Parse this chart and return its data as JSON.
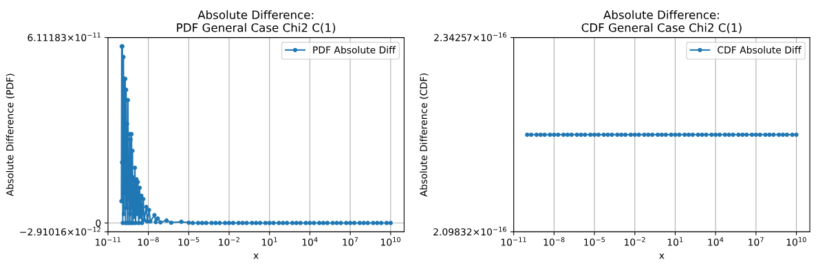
{
  "chart_data": [
    {
      "type": "line",
      "title": "Absolute Difference:\nPDF General Case Chi2 C(1)",
      "xlabel": "x",
      "ylabel": "Absolute Difference (PDF)",
      "log": "x",
      "grid": true,
      "legend": "top right",
      "marker": "circle",
      "line_style": "solid",
      "xlim": [
        1e-11,
        100000000000.0
      ],
      "xticks": [
        {
          "value": 1e-11,
          "label": "10$^{−11}$"
        },
        {
          "value": 1e-08,
          "label": "10$^{−8}$"
        },
        {
          "value": 1e-05,
          "label": "10$^{−5}$"
        },
        {
          "value": 0.01,
          "label": "10$^{−2}$"
        },
        {
          "value": 10,
          "label": "10$^{1}$"
        },
        {
          "value": 10000,
          "label": "10$^{4}$"
        },
        {
          "value": 10000000,
          "label": "10$^{7}$"
        },
        {
          "value": 10000000000,
          "label": "10$^{10}$"
        }
      ],
      "ylim": [
        -2.91016e-12,
        6.11183e-11
      ],
      "yticks": [
        {
          "value": -2.91016e-12,
          "label": "−2.91016×10$^{−12}$"
        },
        0,
        {
          "value": 6.11183e-11,
          "label": "6.11183×10$^{−11}$"
        }
      ],
      "series": [
        {
          "name": "PDF Absolute Diff",
          "color": "#1f77b4",
          "x": [
            1e-10,
            1.05e-10,
            1.12e-10,
            1.17e-10,
            1.26e-10,
            1.41e-10,
            1.51e-10,
            1.66e-10,
            1.78e-10,
            1.91e-10,
            2e-10,
            2.24e-10,
            2.4e-10,
            2.63e-10,
            2.82e-10,
            3.02e-10,
            3.31e-10,
            3.55e-10,
            3.8e-10,
            4.17e-10,
            4.47e-10,
            4.79e-10,
            5.25e-10,
            5.62e-10,
            6.03e-10,
            6.61e-10,
            7.08e-10,
            7.94e-10,
            8.91e-10,
            1e-09,
            1.12e-09,
            1.32e-09,
            1.51e-09,
            1.66e-09,
            1.91e-09,
            2.24e-09,
            2.51e-09,
            3.02e-09,
            3.31e-09,
            4.17e-09,
            4.79e-09,
            7.08e-09,
            8.32e-09,
            1.12e-08,
            1.41e-08,
            2.82e-08,
            3.55e-08,
            5.01e-08,
            7.94e-08,
            2.24e-07,
            5.01e-07,
            2.82e-06,
            1e-05,
            2e-05,
            5e-05,
            0.0001,
            0.0002,
            0.0005,
            0.001,
            0.002,
            0.005,
            0.01,
            0.02,
            0.05,
            0.1,
            0.2,
            0.5,
            1,
            2,
            5,
            10,
            20,
            50,
            100,
            200,
            500,
            1000,
            2000,
            5000,
            10000.0,
            20000.0,
            50000.0,
            100000.0,
            200000.0,
            500000.0,
            1000000.0,
            2000000.0,
            5000000.0,
            10000000.0,
            20000000.0,
            50000000.0,
            100000000.0,
            200000000.0,
            500000000.0,
            1000000000.0,
            2000000000.0,
            5000000000.0,
            10000000000.0
          ],
          "values": [
            7.2e-12,
            5.82e-11,
            2e-11,
            5.82e-11,
            0,
            5.47e-11,
            3e-12,
            4.75e-11,
            1e-11,
            4.75e-11,
            0,
            4.39e-11,
            5e-12,
            3.27e-11,
            0,
            4.05e-11,
            8e-12,
            2e-11,
            0,
            2.93e-11,
            3e-12,
            2.75e-11,
            0,
            2.93e-11,
            5e-12,
            2.38e-11,
            0,
            1.5e-11,
            2e-12,
            1.82e-11,
            0,
            1.44e-11,
            3e-12,
            1.35e-11,
            0,
            1.16e-11,
            2e-12,
            9e-12,
            0,
            7.9e-12,
            1e-12,
            5.3e-12,
            5e-13,
            4.3e-12,
            5e-13,
            2.6e-12,
            3e-13,
            1.5e-12,
            2e-13,
            8e-13,
            1e-13,
            4e-13,
            1e-13,
            0,
            0,
            0,
            0,
            0,
            0,
            0,
            0,
            0,
            0,
            0,
            0,
            0,
            0,
            0,
            0,
            0,
            0,
            0,
            0,
            0,
            0,
            0,
            0,
            0,
            0,
            0,
            0,
            0,
            0,
            0,
            0,
            0,
            0,
            0,
            0,
            0,
            0,
            0,
            0,
            0,
            0,
            0,
            0,
            0
          ]
        }
      ]
    },
    {
      "type": "line",
      "title": "Absolute Difference:\nCDF General Case Chi2 C(1)",
      "xlabel": "x",
      "ylabel": "Absolute Difference (CDF)",
      "log": "x",
      "grid": true,
      "legend": "top right",
      "marker": "circle",
      "line_style": "solid",
      "xlim": [
        1e-11,
        100000000000.0
      ],
      "xticks": [
        {
          "value": 1e-11,
          "label": "10$^{−11}$"
        },
        {
          "value": 1e-08,
          "label": "10$^{−8}$"
        },
        {
          "value": 1e-05,
          "label": "10$^{−5}$"
        },
        {
          "value": 0.01,
          "label": "10$^{−2}$"
        },
        {
          "value": 10,
          "label": "10$^{1}$"
        },
        {
          "value": 10000,
          "label": "10$^{4}$"
        },
        {
          "value": 10000000,
          "label": "10$^{7}$"
        },
        {
          "value": 10000000000,
          "label": "10$^{10}$"
        }
      ],
      "ylim": [
        2.09832e-16,
        2.34257e-16
      ],
      "yticks": [
        {
          "value": 2.09832e-16,
          "label": "2.09832×10$^{−16}$"
        },
        {
          "value": 2.34257e-16,
          "label": "2.34257×10$^{−16}$"
        }
      ],
      "series": [
        {
          "name": "CDF Absolute Diff",
          "color": "#1f77b4",
          "x": [
            1e-10,
            2e-10,
            5e-10,
            1e-09,
            2e-09,
            5e-09,
            1e-08,
            2e-08,
            5e-08,
            1e-07,
            2e-07,
            5e-07,
            1e-06,
            2e-06,
            5e-06,
            1e-05,
            2e-05,
            5e-05,
            0.0001,
            0.0002,
            0.0005,
            0.001,
            0.002,
            0.005,
            0.01,
            0.02,
            0.05,
            0.1,
            0.2,
            0.5,
            1,
            2,
            5,
            10,
            20,
            50,
            100,
            200,
            500,
            1000,
            2000,
            5000,
            10000.0,
            20000.0,
            50000.0,
            100000.0,
            200000.0,
            500000.0,
            1000000.0,
            2000000.0,
            5000000.0,
            10000000.0,
            20000000.0,
            50000000.0,
            100000000.0,
            200000000.0,
            500000000.0,
            1000000000.0,
            2000000000.0,
            5000000000.0,
            10000000000.0
          ],
          "values": [
            2.2204e-16,
            2.2204e-16,
            2.2204e-16,
            2.2204e-16,
            2.2204e-16,
            2.2204e-16,
            2.2204e-16,
            2.2204e-16,
            2.2204e-16,
            2.2204e-16,
            2.2204e-16,
            2.2204e-16,
            2.2204e-16,
            2.2204e-16,
            2.2204e-16,
            2.2204e-16,
            2.2204e-16,
            2.2204e-16,
            2.2204e-16,
            2.2204e-16,
            2.2204e-16,
            2.2204e-16,
            2.2204e-16,
            2.2204e-16,
            2.2204e-16,
            2.2204e-16,
            2.2204e-16,
            2.2204e-16,
            2.2204e-16,
            2.2204e-16,
            2.2204e-16,
            2.2204e-16,
            2.2204e-16,
            2.2204e-16,
            2.2204e-16,
            2.2204e-16,
            2.2204e-16,
            2.2204e-16,
            2.2204e-16,
            2.2204e-16,
            2.2204e-16,
            2.2204e-16,
            2.2204e-16,
            2.2204e-16,
            2.2204e-16,
            2.2204e-16,
            2.2204e-16,
            2.2204e-16,
            2.2204e-16,
            2.2204e-16,
            2.2204e-16,
            2.2204e-16,
            2.2204e-16,
            2.2204e-16,
            2.2204e-16,
            2.2204e-16,
            2.2204e-16,
            2.2204e-16,
            2.2204e-16,
            2.2204e-16,
            2.2204e-16
          ]
        }
      ]
    }
  ]
}
